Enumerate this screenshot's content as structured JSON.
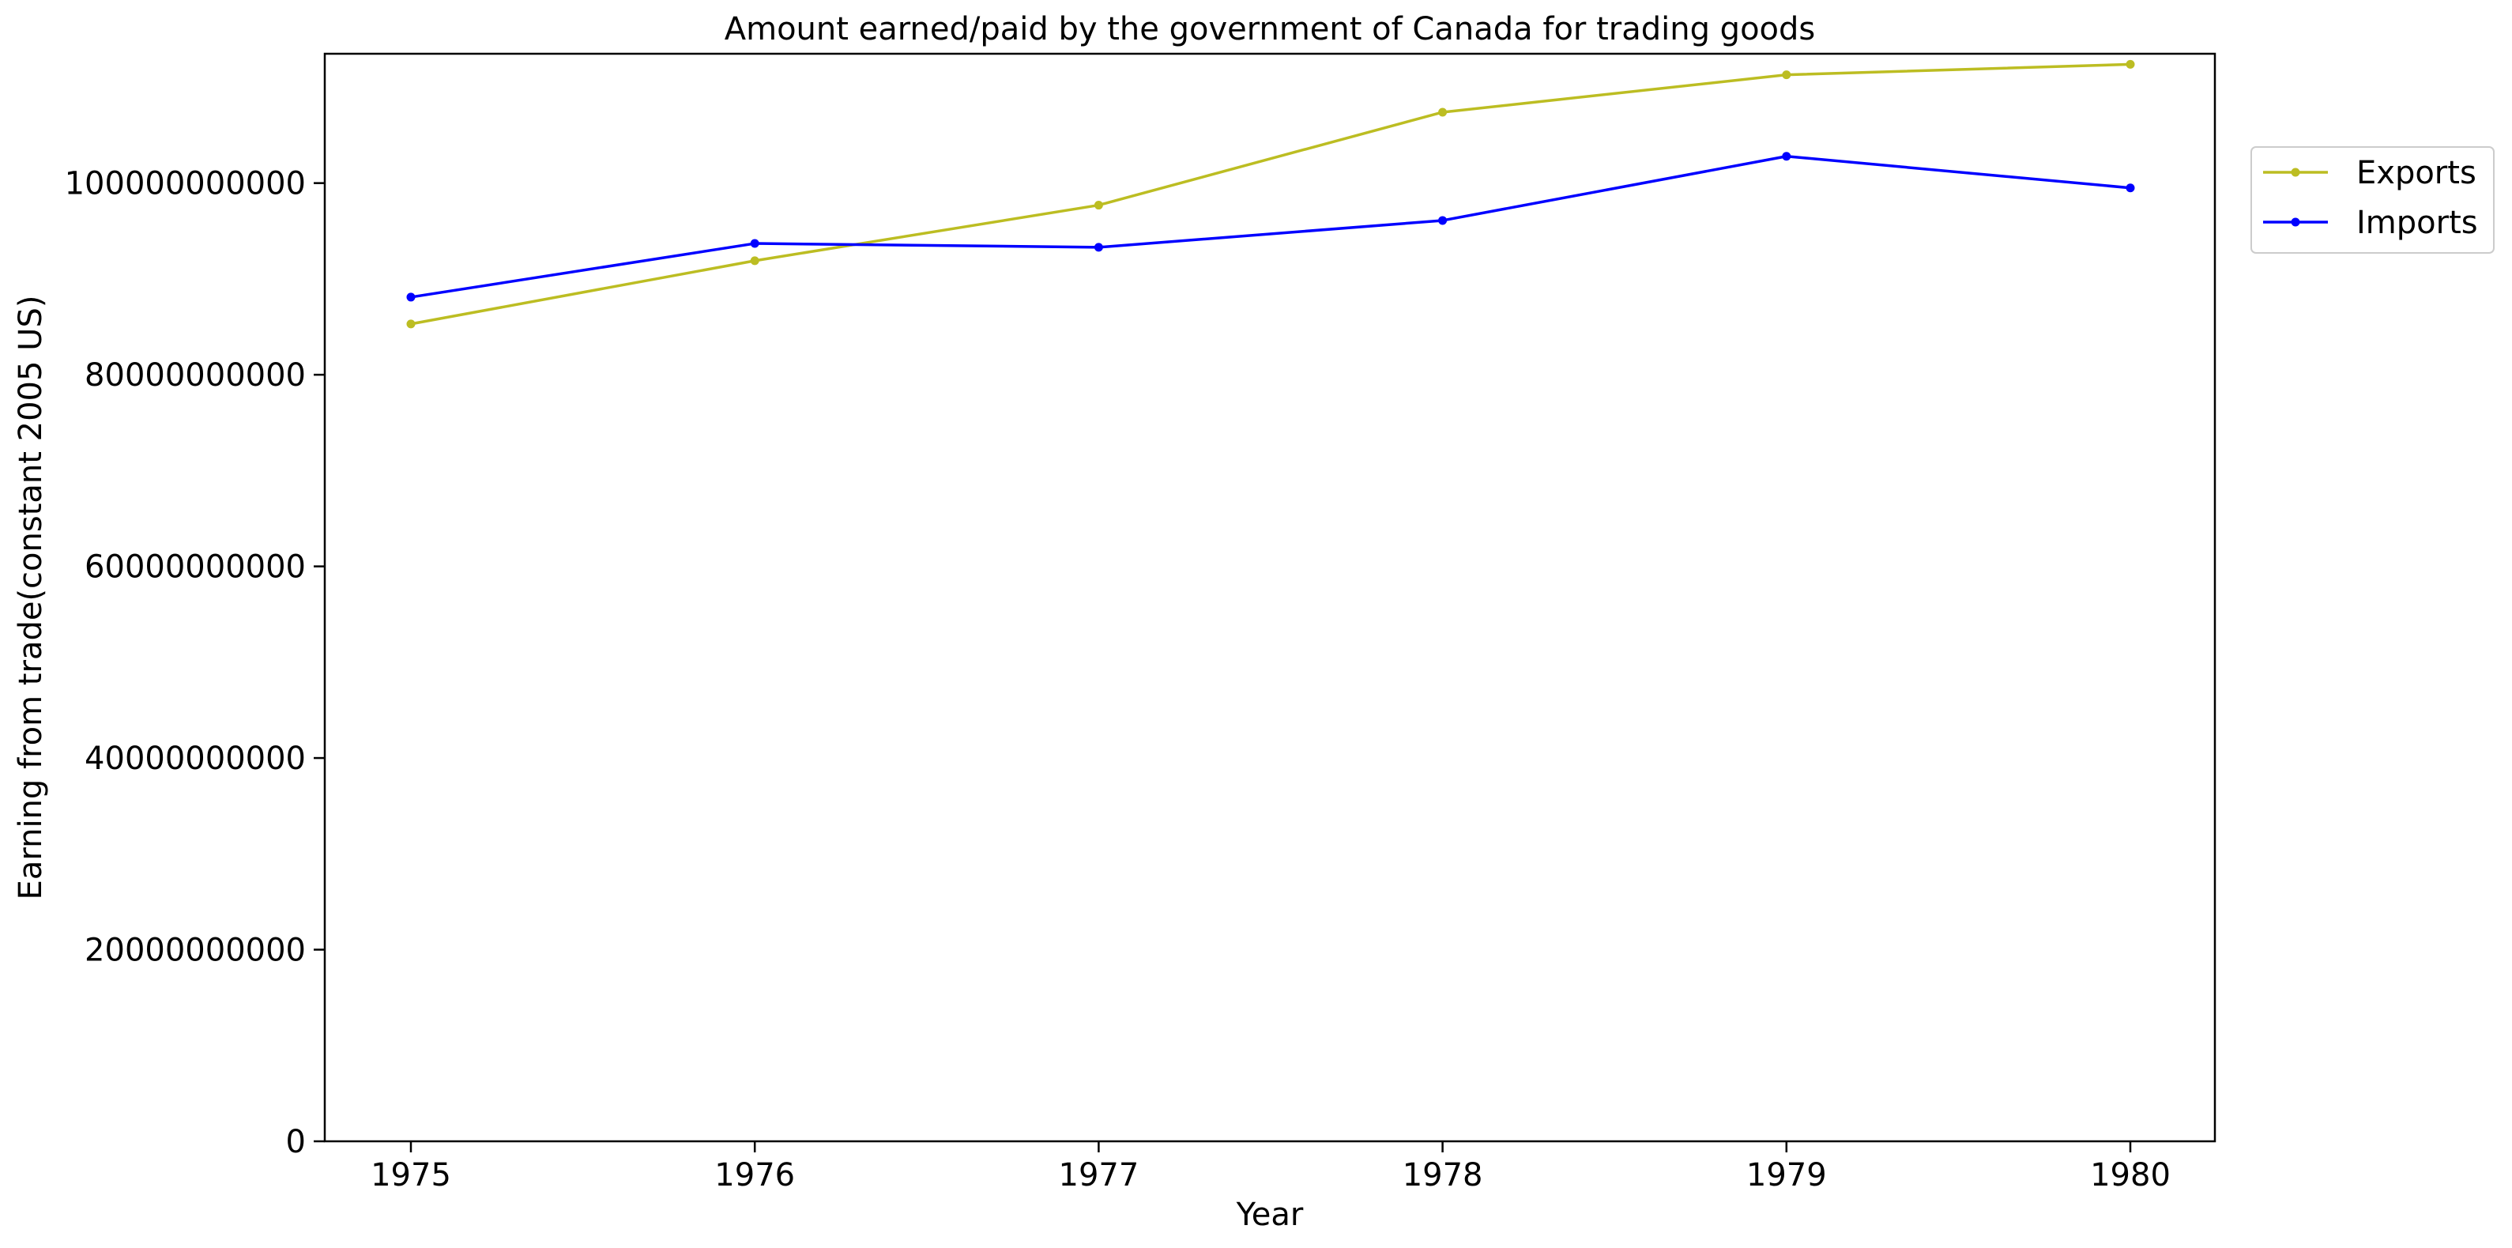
{
  "chart_data": {
    "type": "line",
    "title": "Amount earned/paid by the government of Canada for trading goods",
    "xlabel": "Year",
    "ylabel": "Earning from trade(constant 2005 US)",
    "x": [
      "1975",
      "1976",
      "1977",
      "1978",
      "1979",
      "1980"
    ],
    "ylim": [
      0,
      113500000000
    ],
    "y_ticks": [
      "0",
      "20000000000",
      "40000000000",
      "60000000000",
      "80000000000",
      "100000000000"
    ],
    "grid": false,
    "legend_position": "top-right, outside plot",
    "series": [
      {
        "name": "Exports",
        "color": "#bcbd22",
        "marker": "dot",
        "values": [
          85300000000,
          91900000000,
          97700000000,
          107400000000,
          111300000000,
          112400000000
        ]
      },
      {
        "name": "Imports",
        "color": "#0000ff",
        "marker": "dot",
        "values": [
          88100000000,
          93700000000,
          93300000000,
          96100000000,
          102800000000,
          99500000000
        ]
      }
    ]
  }
}
